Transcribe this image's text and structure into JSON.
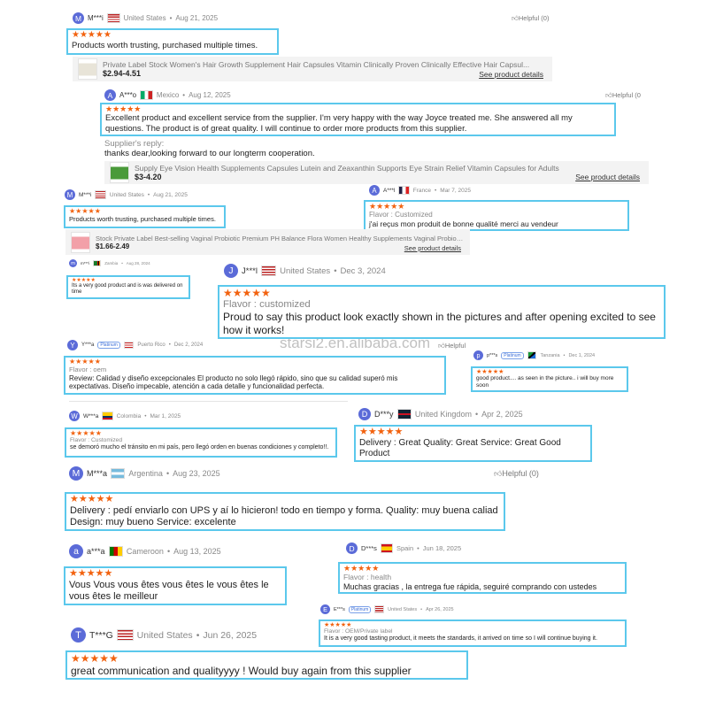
{
  "watermark": "starsi2.en.alibaba.com",
  "helpful_label": "Helpful (0)",
  "helpful_partial": "Helpful (0",
  "helpful_short": "Helpful",
  "badge_label": "Platinum",
  "colors": {
    "accent_border": "#5bc8ec",
    "stars": "#f2620f",
    "avatar": "#5b6bd8"
  },
  "reviews": [
    {
      "initial": "M",
      "name": "M***i",
      "country": "United States",
      "date": "Aug 21, 2025",
      "stars": 5,
      "text": "Products worth trusting, purchased multiple times.",
      "helpful": "Helpful (0)"
    },
    {
      "initial": "A",
      "name": "A***o",
      "country": "Mexico",
      "date": "Aug 12, 2025",
      "stars": 5,
      "text": "Excellent product and excellent service from the supplier. I'm very happy with the way Joyce treated me. She answered all my questions. The product is of great quality. I will continue to order more products from this supplier.",
      "helpful": "Helpful (0"
    },
    {
      "initial": "M",
      "name": "M***i",
      "country": "United States",
      "date": "Aug 21, 2025",
      "stars": 5,
      "text": "Products worth trusting, purchased multiple times."
    },
    {
      "initial": "A",
      "name": "A***l",
      "country": "France",
      "date": "Mar 7, 2025",
      "stars": 5,
      "flavor": "Flavor : Customized",
      "text": "j'ai reçus mon produit de bonne qualité merci au vendeur"
    },
    {
      "initial": "m",
      "name": "m***i",
      "country": "Zambia",
      "date": "Aug 28, 2024",
      "stars": 5,
      "text": "Its a very good product and is was delivered on time"
    },
    {
      "initial": "J",
      "name": "J***l",
      "country": "United States",
      "date": "Dec 3, 2024",
      "stars": 5,
      "flavor": "Flavor : customized",
      "text": "Proud to say this product look exactly shown in the pictures and after opening excited to see how it works!"
    },
    {
      "initial": "Y",
      "name": "Y***a",
      "badge": true,
      "country": "Puerto Rico",
      "date": "Dec 2, 2024",
      "stars": 5,
      "flavor": "Flavor : oem",
      "text": "Review: Calidad y diseño excepcionales El producto no solo llegó rápido, sino que su calidad superó mis expectativas. Diseño impecable, atención a cada detalle y funcionalidad perfecta.",
      "helpful": "Helpful"
    },
    {
      "initial": "p",
      "name": "p***s",
      "badge": true,
      "country": "Tanzania",
      "date": "Dec 1, 2024",
      "stars": 5,
      "text": "good product.... as seen in the picture.. i will buy more soon"
    },
    {
      "initial": "W",
      "name": "W***a",
      "country": "Colombia",
      "date": "Mar 1, 2025",
      "stars": 5,
      "flavor": "Flavor : Customized",
      "text": "se demoró mucho el tránsito en mi país, pero llegó orden en buenas condiciones y completo!!."
    },
    {
      "initial": "D",
      "name": "D***y",
      "country": "United Kingdom",
      "date": "Apr 2, 2025",
      "stars": 5,
      "text": "Delivery : Great Quality: Great Service: Great Good Product"
    },
    {
      "initial": "M",
      "name": "M***a",
      "country": "Argentina",
      "date": "Aug 23, 2025",
      "stars": 5,
      "text": "Delivery : pedí enviarlo con UPS y aí lo hicieron! todo en tiempo y forma. Quality: muy buena caliad Design: muy bueno Service: excelente",
      "helpful": "Helpful (0)"
    },
    {
      "initial": "a",
      "name": "a***a",
      "country": "Cameroon",
      "date": "Aug 13, 2025",
      "stars": 5,
      "text": "Vous Vous vous êtes vous êtes le vous êtes le vous êtes le meilleur"
    },
    {
      "initial": "D",
      "name": "D***s",
      "country": "Spain",
      "date": "Jun 18, 2025",
      "stars": 5,
      "flavor": "Flavor : health",
      "text": "Muchas gracias , la entrega fue rápida, seguiré comprando con ustedes"
    },
    {
      "initial": "E",
      "name": "E***s",
      "badge": true,
      "country": "United States",
      "date": "Apr 26, 2025",
      "stars": 5,
      "flavor": "Flavor : OEM/Private label",
      "text": "It is a very good tasting product, it meets the standards, it arrived on time so I will continue buying it."
    },
    {
      "initial": "T",
      "name": "T***G",
      "country": "United States",
      "date": "Jun 26, 2025",
      "stars": 5,
      "text": "great communication and qualityyyy ! Would buy again from this supplier"
    }
  ],
  "supplier_reply": {
    "label": "Supplier's reply:",
    "text": "thanks dear,looking forward to our longterm cooperation."
  },
  "products": [
    {
      "title": "Private Label Stock Women's Hair Growth Supplement Hair Capsules Vitamin Clinically Proven Clinically Effective Hair Capsul...",
      "price": "$2.94-4.51",
      "link": "See product details"
    },
    {
      "title": "Supply Eye Vision Health Supplements Capsules Lutein and Zeaxanthin Supports Eye Strain Relief Vitamin Capsules for Adults",
      "price": "$3-4.20",
      "link": "See product details"
    },
    {
      "title": "Stock Private Label Best-selling Vaginal Probiotic Premium PH Balance Flora Women Healthy Supplements Vaginal Probiotic ...",
      "price": "$1.66-2.49",
      "link": "See product details"
    }
  ]
}
